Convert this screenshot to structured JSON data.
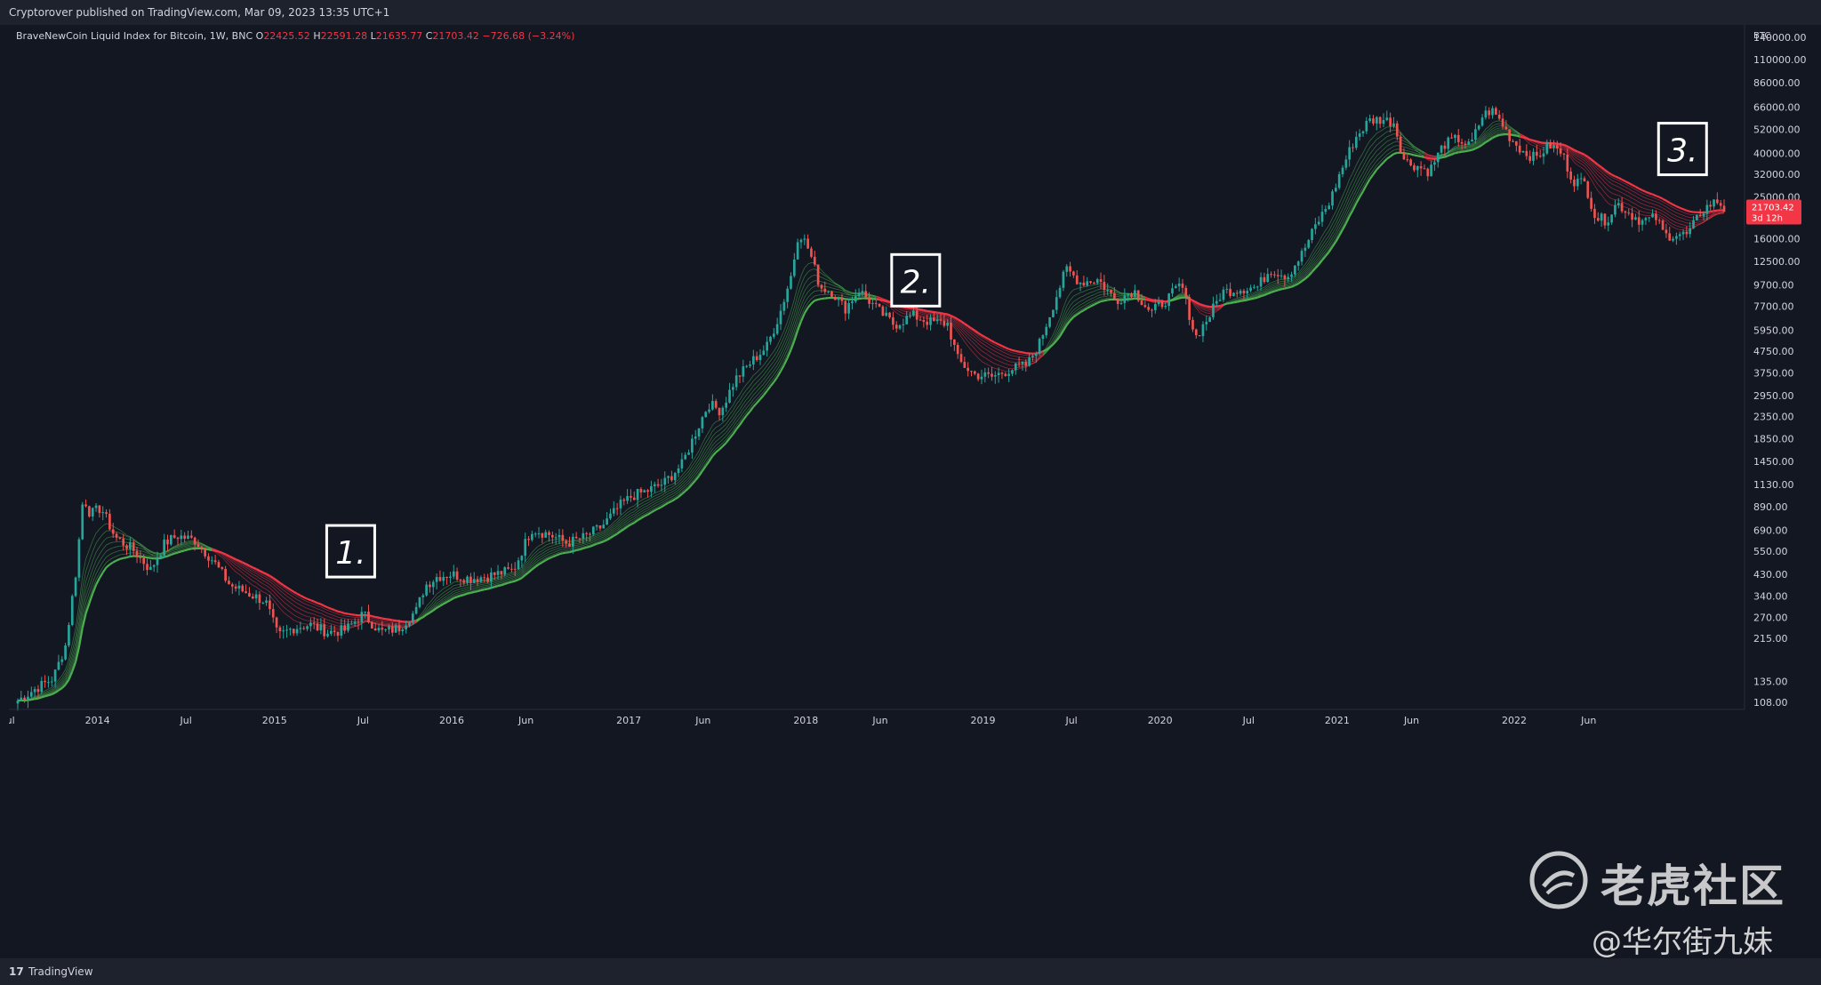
{
  "header": {
    "published": "Cryptorover published on TradingView.com, Mar 09, 2023 13:35 UTC+1"
  },
  "legend": {
    "symbol": "BraveNewCoin Liquid Index for Bitcoin, 1W, BNC",
    "o_label": "O",
    "o_value": "22425.52",
    "h_label": "H",
    "h_value": "22591.28",
    "l_label": "L",
    "l_value": "21635.77",
    "c_label": "C",
    "c_value": "21703.42",
    "change": "−726.68 (−3.24%)"
  },
  "price_label": {
    "value": "21703.42",
    "countdown": "3d 12h"
  },
  "footer": {
    "logo": "17",
    "brand": "TradingView"
  },
  "watermark": {
    "text": "老虎社区",
    "sub": "@华尔街九妹"
  },
  "colors": {
    "bg": "#131722",
    "up": "#26a69a",
    "down": "#ef5350",
    "ribbon_green": "#4caf50",
    "ribbon_red": "#f23645",
    "label_bg": "#f23645"
  },
  "chart_data": {
    "type": "line",
    "title": "BraveNewCoin Liquid Index for Bitcoin, 1W, BNC",
    "xlabel": "",
    "ylabel": "",
    "currency": "BTC",
    "y_scale": "log",
    "ylim": [
      100,
      160000
    ],
    "y_ticks": [
      "140000.00",
      "110000.00",
      "86000.00",
      "66000.00",
      "52000.00",
      "40000.00",
      "32000.00",
      "25000.00",
      "16000.00",
      "12500.00",
      "9700.00",
      "7700.00",
      "5950.00",
      "4750.00",
      "3750.00",
      "2950.00",
      "2350.00",
      "1850.00",
      "1450.00",
      "1130.00",
      "890.00",
      "690.00",
      "550.00",
      "430.00",
      "340.00",
      "270.00",
      "215.00",
      "135.00",
      "108.00"
    ],
    "x_ticks": [
      "Jul",
      "2014",
      "Jul",
      "2015",
      "Jul",
      "2016",
      "Jun",
      "2017",
      "Jun",
      "2018",
      "Jun",
      "2019",
      "Jul",
      "2020",
      "Jul",
      "2021",
      "Jun",
      "2022",
      "Jun"
    ],
    "x_tick_dates": [
      2013.5,
      2014.0,
      2014.5,
      2015.0,
      2015.5,
      2016.0,
      2016.42,
      2017.0,
      2017.42,
      2018.0,
      2018.42,
      2019.0,
      2019.5,
      2020.0,
      2020.5,
      2021.0,
      2021.42,
      2022.0,
      2022.42
    ],
    "x_range": [
      2013.5,
      2023.3
    ],
    "price_series": [
      {
        "x": 2013.55,
        "y": 110
      },
      {
        "x": 2013.65,
        "y": 125
      },
      {
        "x": 2013.75,
        "y": 140
      },
      {
        "x": 2013.82,
        "y": 200
      },
      {
        "x": 2013.88,
        "y": 450
      },
      {
        "x": 2013.92,
        "y": 1000
      },
      {
        "x": 2013.96,
        "y": 820
      },
      {
        "x": 2014.02,
        "y": 880
      },
      {
        "x": 2014.1,
        "y": 640
      },
      {
        "x": 2014.2,
        "y": 560
      },
      {
        "x": 2014.3,
        "y": 450
      },
      {
        "x": 2014.38,
        "y": 600
      },
      {
        "x": 2014.45,
        "y": 650
      },
      {
        "x": 2014.55,
        "y": 620
      },
      {
        "x": 2014.65,
        "y": 500
      },
      {
        "x": 2014.75,
        "y": 380
      },
      {
        "x": 2014.85,
        "y": 350
      },
      {
        "x": 2014.95,
        "y": 320
      },
      {
        "x": 2015.02,
        "y": 220
      },
      {
        "x": 2015.1,
        "y": 240
      },
      {
        "x": 2015.2,
        "y": 250
      },
      {
        "x": 2015.3,
        "y": 230
      },
      {
        "x": 2015.4,
        "y": 235
      },
      {
        "x": 2015.5,
        "y": 280
      },
      {
        "x": 2015.6,
        "y": 230
      },
      {
        "x": 2015.7,
        "y": 240
      },
      {
        "x": 2015.8,
        "y": 290
      },
      {
        "x": 2015.85,
        "y": 380
      },
      {
        "x": 2015.92,
        "y": 420
      },
      {
        "x": 2016.0,
        "y": 430
      },
      {
        "x": 2016.1,
        "y": 410
      },
      {
        "x": 2016.2,
        "y": 420
      },
      {
        "x": 2016.35,
        "y": 450
      },
      {
        "x": 2016.45,
        "y": 700
      },
      {
        "x": 2016.55,
        "y": 660
      },
      {
        "x": 2016.65,
        "y": 600
      },
      {
        "x": 2016.75,
        "y": 640
      },
      {
        "x": 2016.85,
        "y": 720
      },
      {
        "x": 2016.95,
        "y": 900
      },
      {
        "x": 2017.02,
        "y": 1000
      },
      {
        "x": 2017.1,
        "y": 1050
      },
      {
        "x": 2017.2,
        "y": 1150
      },
      {
        "x": 2017.3,
        "y": 1400
      },
      {
        "x": 2017.38,
        "y": 2000
      },
      {
        "x": 2017.45,
        "y": 2700
      },
      {
        "x": 2017.52,
        "y": 2500
      },
      {
        "x": 2017.6,
        "y": 3500
      },
      {
        "x": 2017.7,
        "y": 4300
      },
      {
        "x": 2017.78,
        "y": 5000
      },
      {
        "x": 2017.85,
        "y": 7000
      },
      {
        "x": 2017.92,
        "y": 11000
      },
      {
        "x": 2017.96,
        "y": 17500
      },
      {
        "x": 2018.02,
        "y": 14000
      },
      {
        "x": 2018.08,
        "y": 9500
      },
      {
        "x": 2018.15,
        "y": 9000
      },
      {
        "x": 2018.22,
        "y": 7500
      },
      {
        "x": 2018.3,
        "y": 9200
      },
      {
        "x": 2018.4,
        "y": 7500
      },
      {
        "x": 2018.5,
        "y": 6300
      },
      {
        "x": 2018.6,
        "y": 7000
      },
      {
        "x": 2018.7,
        "y": 6500
      },
      {
        "x": 2018.8,
        "y": 6400
      },
      {
        "x": 2018.86,
        "y": 4300
      },
      {
        "x": 2018.95,
        "y": 3700
      },
      {
        "x": 2019.05,
        "y": 3600
      },
      {
        "x": 2019.15,
        "y": 3900
      },
      {
        "x": 2019.25,
        "y": 4100
      },
      {
        "x": 2019.32,
        "y": 5200
      },
      {
        "x": 2019.4,
        "y": 8000
      },
      {
        "x": 2019.47,
        "y": 11500
      },
      {
        "x": 2019.55,
        "y": 10000
      },
      {
        "x": 2019.65,
        "y": 10300
      },
      {
        "x": 2019.75,
        "y": 8200
      },
      {
        "x": 2019.85,
        "y": 9200
      },
      {
        "x": 2019.95,
        "y": 7200
      },
      {
        "x": 2020.05,
        "y": 8500
      },
      {
        "x": 2020.12,
        "y": 9800
      },
      {
        "x": 2020.2,
        "y": 5500
      },
      {
        "x": 2020.28,
        "y": 7000
      },
      {
        "x": 2020.35,
        "y": 9000
      },
      {
        "x": 2020.45,
        "y": 9300
      },
      {
        "x": 2020.55,
        "y": 9500
      },
      {
        "x": 2020.62,
        "y": 11500
      },
      {
        "x": 2020.72,
        "y": 10700
      },
      {
        "x": 2020.8,
        "y": 13500
      },
      {
        "x": 2020.88,
        "y": 18500
      },
      {
        "x": 2020.96,
        "y": 24000
      },
      {
        "x": 2021.02,
        "y": 33000
      },
      {
        "x": 2021.1,
        "y": 47000
      },
      {
        "x": 2021.18,
        "y": 57000
      },
      {
        "x": 2021.25,
        "y": 58000
      },
      {
        "x": 2021.32,
        "y": 56000
      },
      {
        "x": 2021.38,
        "y": 37000
      },
      {
        "x": 2021.45,
        "y": 35000
      },
      {
        "x": 2021.52,
        "y": 33000
      },
      {
        "x": 2021.6,
        "y": 44000
      },
      {
        "x": 2021.68,
        "y": 47000
      },
      {
        "x": 2021.75,
        "y": 43000
      },
      {
        "x": 2021.82,
        "y": 60000
      },
      {
        "x": 2021.87,
        "y": 64000
      },
      {
        "x": 2021.92,
        "y": 57000
      },
      {
        "x": 2021.98,
        "y": 47000
      },
      {
        "x": 2022.05,
        "y": 41000
      },
      {
        "x": 2022.12,
        "y": 38000
      },
      {
        "x": 2022.2,
        "y": 44000
      },
      {
        "x": 2022.27,
        "y": 40000
      },
      {
        "x": 2022.33,
        "y": 30000
      },
      {
        "x": 2022.4,
        "y": 29000
      },
      {
        "x": 2022.46,
        "y": 20000
      },
      {
        "x": 2022.52,
        "y": 19500
      },
      {
        "x": 2022.58,
        "y": 23500
      },
      {
        "x": 2022.65,
        "y": 21000
      },
      {
        "x": 2022.72,
        "y": 19300
      },
      {
        "x": 2022.8,
        "y": 20000
      },
      {
        "x": 2022.85,
        "y": 16500
      },
      {
        "x": 2022.92,
        "y": 16800
      },
      {
        "x": 2022.98,
        "y": 16600
      },
      {
        "x": 2023.05,
        "y": 21000
      },
      {
        "x": 2023.1,
        "y": 23000
      },
      {
        "x": 2023.15,
        "y": 24000
      },
      {
        "x": 2023.19,
        "y": 21703
      }
    ],
    "annotations": [
      {
        "label": "1.",
        "x": 2015.43,
        "y": 550
      },
      {
        "label": "2.",
        "x": 2018.62,
        "y": 10200
      },
      {
        "label": "3.",
        "x": 2022.95,
        "y": 42000
      }
    ]
  }
}
